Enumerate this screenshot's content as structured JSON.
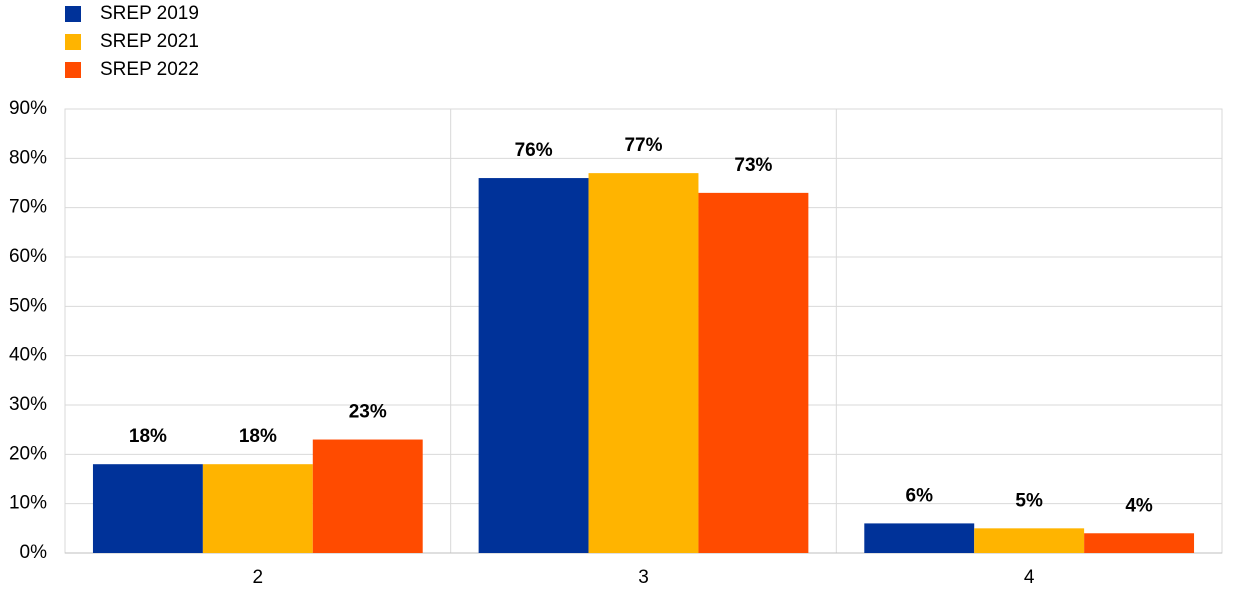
{
  "chart_data": {
    "type": "bar",
    "categories": [
      "2",
      "3",
      "4"
    ],
    "series": [
      {
        "name": "SREP 2019",
        "color": "#003299",
        "values": [
          18,
          76,
          6
        ],
        "value_labels": [
          "18%",
          "76%",
          "6%"
        ]
      },
      {
        "name": "SREP 2021",
        "color": "#ffb400",
        "values": [
          18,
          77,
          5
        ],
        "value_labels": [
          "18%",
          "77%",
          "5%"
        ]
      },
      {
        "name": "SREP 2022",
        "color": "#ff4b00",
        "values": [
          23,
          73,
          4
        ],
        "value_labels": [
          "23%",
          "73%",
          "4%"
        ]
      }
    ],
    "ylim": [
      0,
      90
    ],
    "yticks": [
      {
        "value": 0,
        "label": "0%"
      },
      {
        "value": 10,
        "label": "10%"
      },
      {
        "value": 20,
        "label": "20%"
      },
      {
        "value": 30,
        "label": "30%"
      },
      {
        "value": 40,
        "label": "40%"
      },
      {
        "value": 50,
        "label": "50%"
      },
      {
        "value": 60,
        "label": "60%"
      },
      {
        "value": 70,
        "label": "70%"
      },
      {
        "value": 80,
        "label": "80%"
      },
      {
        "value": 90,
        "label": "90%"
      }
    ],
    "grid": true,
    "legend": "top-left"
  }
}
